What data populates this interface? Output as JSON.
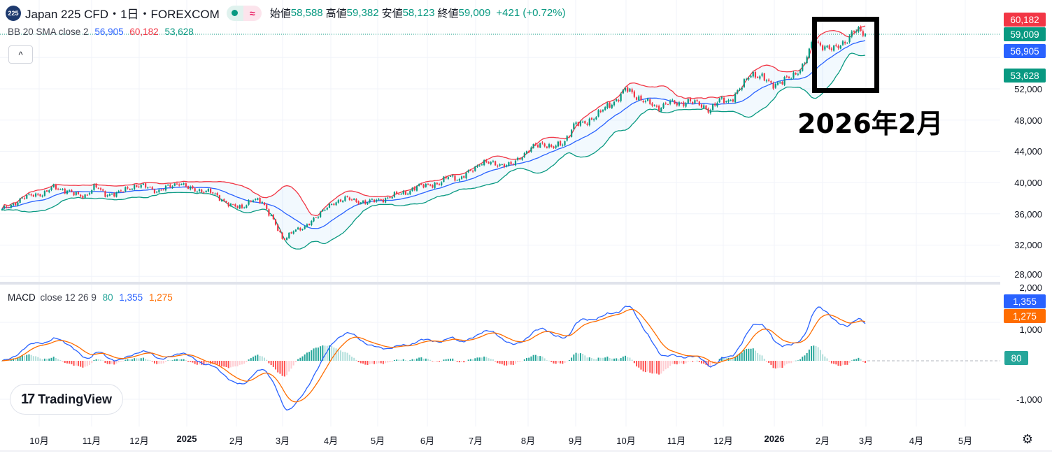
{
  "header": {
    "symbol_icon": "225",
    "title": "Japan 225 CFD・1日・FOREXCOM",
    "market_status": "market-open-dot",
    "delay_icon": "≈",
    "open_label": "始値",
    "open": "58,588",
    "high_label": "高値",
    "high": "59,382",
    "low_label": "安値",
    "low": "58,123",
    "close_label": "終値",
    "close": "59,009",
    "change": "+421 (+0.72%)"
  },
  "bb_legend": {
    "name": "BB 20 SMA close 2",
    "basis": "56,905",
    "upper": "60,182",
    "lower": "53,628"
  },
  "macd_legend": {
    "name": "MACD",
    "params": "close 12 26 9",
    "hist": "80",
    "macd": "1,355",
    "signal": "1,275"
  },
  "collapse_icon": "^",
  "price_axis": [
    "52,000",
    "48,000",
    "44,000",
    "40,000",
    "36,000",
    "32,000",
    "28,000"
  ],
  "price_tags": {
    "upper": "60,182",
    "last": "59,009",
    "basis": "56,905",
    "lower": "53,628"
  },
  "macd_axis": [
    "2,000",
    "1,000",
    "-1,000"
  ],
  "macd_tags": {
    "macd": "1,355",
    "signal": "1,275",
    "hist": "80"
  },
  "time_axis": [
    "10月",
    "11月",
    "12月",
    "2025",
    "2月",
    "3月",
    "4月",
    "5月",
    "6月",
    "7月",
    "8月",
    "9月",
    "10月",
    "11月",
    "12月",
    "2026",
    "2月",
    "3月",
    "4月",
    "5月"
  ],
  "annotation": "2026年2月",
  "logo": {
    "mark": "17",
    "text": "TradingView"
  },
  "colors": {
    "up": "#089981",
    "down": "#f23645",
    "bb_upper": "#f23645",
    "bb_basis": "#2962ff",
    "bb_lower": "#089981",
    "macd": "#2962ff",
    "signal": "#ff6d00"
  },
  "chart_data": {
    "type": "candlestick",
    "title": "Japan 225 CFD・1日・FOREXCOM",
    "indicators": [
      "BB 20 SMA close 2",
      "MACD close 12 26 9"
    ],
    "x_range": [
      "2024-09",
      "2026-02"
    ],
    "ylim": [
      28000,
      62000
    ],
    "macd_ylim": [
      -1500,
      2000
    ],
    "grid": true,
    "weekly_close": [
      36500,
      37200,
      38000,
      38500,
      38500,
      39500,
      39000,
      38500,
      38300,
      39500,
      38500,
      38500,
      39300,
      39500,
      39500,
      38800,
      39500,
      40000,
      39200,
      39000,
      38800,
      38000,
      37000,
      36800,
      37800,
      37500,
      35500,
      32500,
      34000,
      34000,
      35500,
      36500,
      37500,
      38000,
      37600,
      37500,
      37700,
      38000,
      38500,
      38800,
      39500,
      39800,
      39700,
      41000,
      40300,
      41500,
      42500,
      42500,
      42300,
      42200,
      43500,
      44500,
      45000,
      44500,
      45000,
      47500,
      47500,
      48500,
      49500,
      50500,
      52000,
      51000,
      50300,
      49500,
      50300,
      50000,
      50500,
      50000,
      49300,
      50500,
      50500,
      52000,
      54000,
      53500,
      52500,
      53000,
      53500,
      55000,
      58000,
      57500,
      57000,
      58000,
      59500,
      59009
    ]
  }
}
